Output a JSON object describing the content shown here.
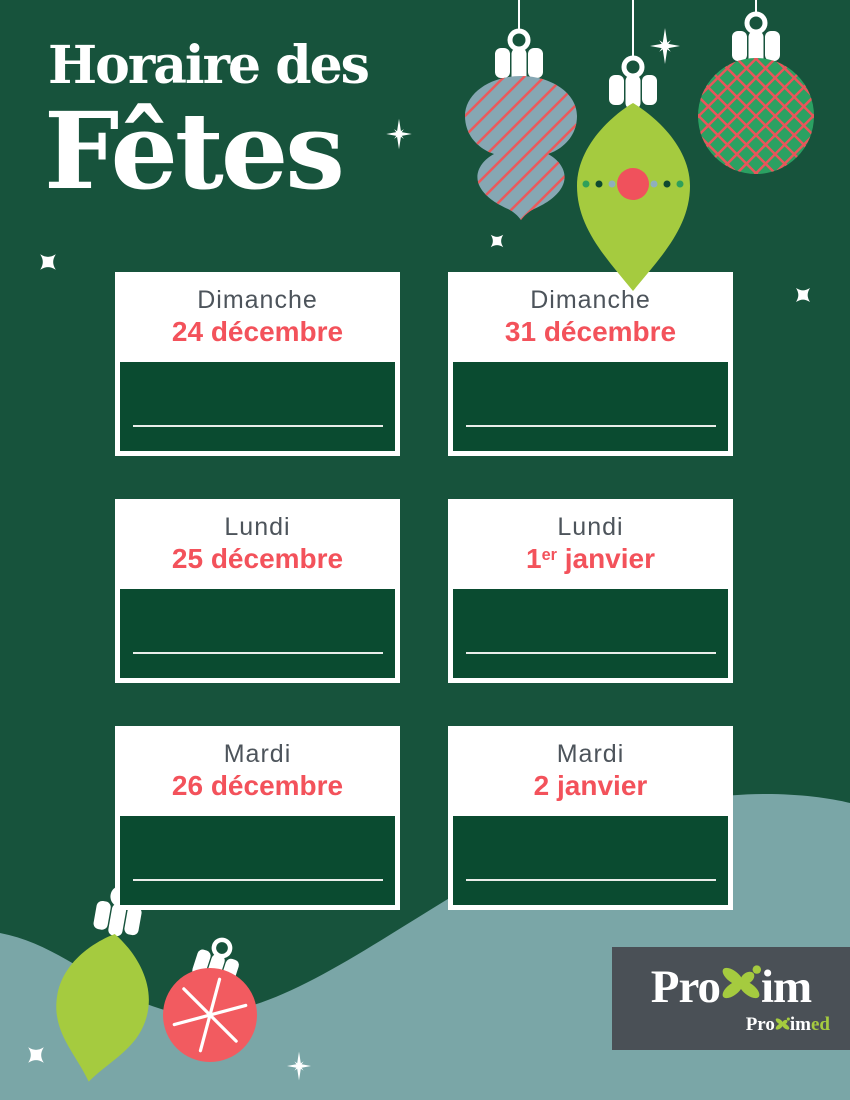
{
  "title": {
    "line1": "Horaire des",
    "line2": "Fêtes"
  },
  "cards": [
    {
      "day": "Dimanche",
      "date_pre": "24 décembre",
      "date_sup": "",
      "date_post": ""
    },
    {
      "day": "Dimanche",
      "date_pre": "31 décembre",
      "date_sup": "",
      "date_post": ""
    },
    {
      "day": "Lundi",
      "date_pre": "25 décembre",
      "date_sup": "",
      "date_post": ""
    },
    {
      "day": "Lundi",
      "date_pre": "1",
      "date_sup": "er",
      "date_post": " janvier"
    },
    {
      "day": "Mardi",
      "date_pre": "26 décembre",
      "date_sup": "",
      "date_post": ""
    },
    {
      "day": "Mardi",
      "date_pre": "2 janvier",
      "date_sup": "",
      "date_post": ""
    }
  ],
  "logo": {
    "main_pre": "Pro",
    "main_post": "im",
    "sub_pre": "Pro",
    "sub_mid": "im",
    "sub_post": "ed"
  },
  "colors": {
    "background_green": "#17533C",
    "card_body_green": "#0A4B30",
    "card_white": "#FFFFFF",
    "day_text_gray": "#4D545B",
    "date_red": "#F3525B",
    "lime_green": "#A5CB3F",
    "teal_wave": "#7AA6A7",
    "slate_blue_ornament": "#86A7B3",
    "stripe_red": "#EA5A5C",
    "plaid_ball_green": "#2BA162",
    "ornament_red": "#F25B60",
    "logo_box_gray": "#4A5056",
    "fill_line": "#E9EDE9",
    "white": "#FFFFFF"
  },
  "decorations": {
    "icons": [
      "bauble-onion-striped-icon",
      "bauble-teardrop-icon",
      "bauble-ball-plaid-icon",
      "bauble-teardrop-small-icon",
      "bauble-ball-snowflake-icon",
      "snowflake-icon",
      "sparkle-icon",
      "x-sparkle-icon",
      "proxim-x-icon",
      "wave-shape"
    ]
  }
}
